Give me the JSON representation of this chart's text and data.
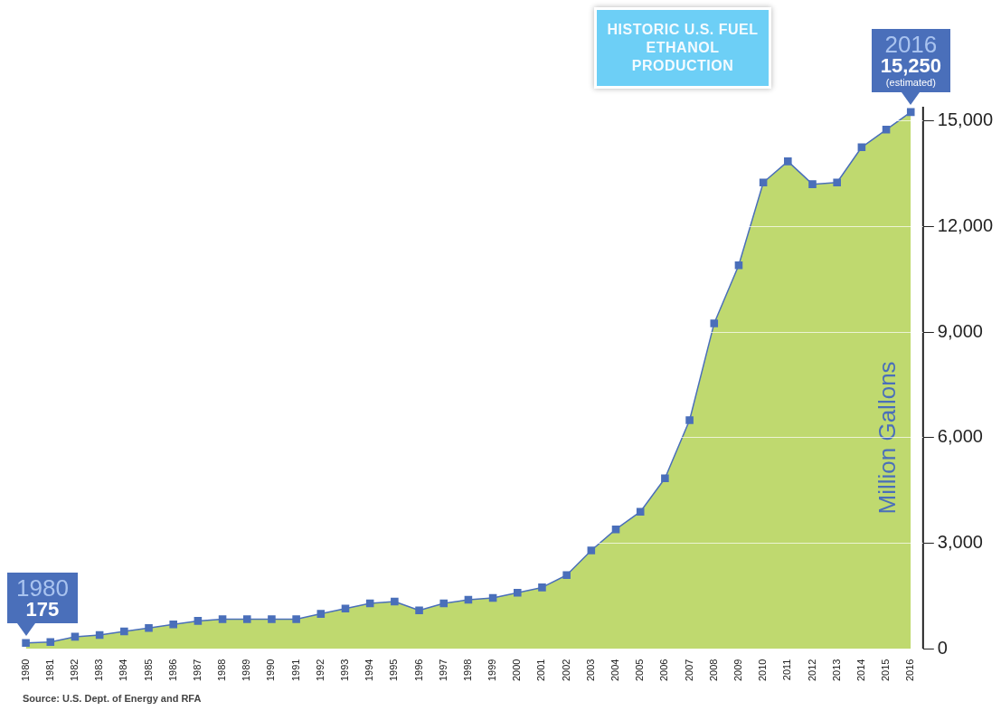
{
  "chart_data": {
    "type": "area",
    "title": "HISTORIC U.S. FUEL ETHANOL PRODUCTION",
    "ylabel": "Million Gallons",
    "categories": [
      "1980",
      "1981",
      "1982",
      "1983",
      "1984",
      "1985",
      "1986",
      "1987",
      "1988",
      "1989",
      "1990",
      "1991",
      "1992",
      "1993",
      "1994",
      "1995",
      "1996",
      "1997",
      "1998",
      "1999",
      "2000",
      "2001",
      "2002",
      "2003",
      "2004",
      "2005",
      "2006",
      "2007",
      "2008",
      "2009",
      "2010",
      "2011",
      "2012",
      "2013",
      "2014",
      "2015",
      "2016"
    ],
    "series": [
      {
        "color": "#bfd96f",
        "values": [
          175,
          200,
          350,
          400,
          500,
          600,
          700,
          800,
          850,
          850,
          850,
          850,
          1000,
          1150,
          1300,
          1350,
          1100,
          1300,
          1400,
          1450,
          1600,
          1750,
          2100,
          2800,
          3400,
          3900,
          4850,
          6500,
          9250,
          10900,
          13250,
          13850,
          13200,
          13250,
          14250,
          14750,
          15250
        ]
      },
      {
        "type": "line",
        "marker": "square",
        "color": "#4a6fba",
        "values": [
          175,
          200,
          350,
          400,
          500,
          600,
          700,
          800,
          850,
          850,
          850,
          850,
          1000,
          1150,
          1300,
          1350,
          1100,
          1300,
          1400,
          1450,
          1600,
          1750,
          2100,
          2800,
          3400,
          3900,
          4850,
          6500,
          9250,
          10900,
          13250,
          13850,
          13200,
          13250,
          14250,
          14750,
          15250
        ]
      }
    ],
    "ylim": [
      0,
      15400
    ],
    "yticks": [
      {
        "value": 0,
        "label": "0"
      },
      {
        "value": 3000,
        "label": "3,000"
      },
      {
        "value": 6000,
        "label": "6,000"
      },
      {
        "value": 9000,
        "label": "9,000"
      },
      {
        "value": 12000,
        "label": "12,000"
      },
      {
        "value": 15000,
        "label": "15,000"
      }
    ],
    "grid": "y",
    "legend": false,
    "line_style": "solid",
    "annotations": [
      {
        "text": "1980\n175",
        "x": "1980",
        "y": 175
      },
      {
        "text": "2016\n15,250\n(estimated)",
        "x": "2016",
        "y": 15250
      },
      "Source: U.S. Dept. of Energy and RFA"
    ]
  }
}
